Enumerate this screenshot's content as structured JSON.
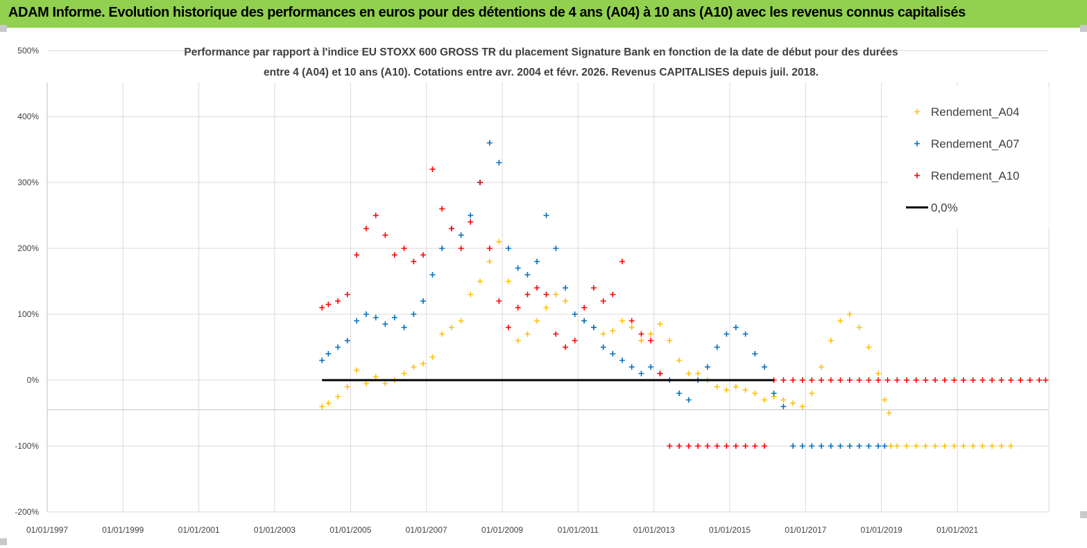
{
  "header": {
    "title": "ADAM Informe. Evolution historique des performances en euros pour des détentions de 4 ans (A04) à 10 ans (A10) avec les revenus connus capitalisés"
  },
  "colors": {
    "banner": "#92d050",
    "A04": "#ffc000",
    "A07": "#0070c0",
    "A10": "#ff0000",
    "zero": "#000000",
    "grid": "#d9d9d9"
  },
  "chart_data": {
    "type": "scatter",
    "title_lines": [
      "Performance par rapport à l'indice EU STOXX 600 GROSS TR  du placement Signature Bank en fonction de la date de début pour des durées",
      "entre 4 (A04) et 10 ans (A10).  Cotations entre avr. 2004 et févr. 2026. Revenus CAPITALISES depuis juil. 2018."
    ],
    "xlabel": "",
    "ylabel": "",
    "x_range": [
      "1997-01-01",
      "2023-06-01"
    ],
    "x_ticks": [
      "01/01/1997",
      "01/01/1999",
      "01/01/2001",
      "01/01/2003",
      "01/01/2005",
      "01/01/2007",
      "01/01/2009",
      "01/01/2011",
      "01/01/2013",
      "01/01/2015",
      "01/01/2017",
      "01/01/2019",
      "01/01/2021"
    ],
    "y_range": [
      -200,
      500
    ],
    "y_ticks": [
      "500%",
      "400%",
      "300%",
      "200%",
      "100%",
      "0%",
      "-100%",
      "-200%"
    ],
    "y_tick_values": [
      500,
      400,
      300,
      200,
      100,
      0,
      -100,
      -200
    ],
    "grid": true,
    "legend_position": "top-right",
    "series": [
      {
        "name": "Rendement_A04",
        "color": "#ffc000",
        "marker": "+",
        "x": [
          "2004-04-01",
          "2004-06-01",
          "2004-09-01",
          "2004-12-01",
          "2005-03-01",
          "2005-06-01",
          "2005-09-01",
          "2005-12-01",
          "2006-03-01",
          "2006-06-01",
          "2006-09-01",
          "2006-12-01",
          "2007-03-01",
          "2007-06-01",
          "2007-09-01",
          "2007-12-01",
          "2008-03-01",
          "2008-06-01",
          "2008-09-01",
          "2008-12-01",
          "2009-03-01",
          "2009-06-01",
          "2009-09-01",
          "2009-12-01",
          "2010-03-01",
          "2010-06-01",
          "2010-09-01",
          "2010-12-01",
          "2011-03-01",
          "2011-06-01",
          "2011-09-01",
          "2011-12-01",
          "2012-03-01",
          "2012-06-01",
          "2012-09-01",
          "2012-12-01",
          "2013-03-01",
          "2013-06-01",
          "2013-09-01",
          "2013-12-01",
          "2014-03-01",
          "2014-06-01",
          "2014-09-01",
          "2014-12-01",
          "2015-03-01",
          "2015-06-01",
          "2015-09-01",
          "2015-12-01",
          "2016-03-01",
          "2016-06-01",
          "2016-09-01",
          "2016-12-01",
          "2017-03-01",
          "2017-06-01",
          "2017-09-01",
          "2017-12-01",
          "2018-03-01",
          "2018-06-01",
          "2018-09-01",
          "2018-12-01",
          "2019-02-01",
          "2019-03-15",
          "2019-04-01",
          "2019-06-01",
          "2019-09-01",
          "2019-12-01",
          "2020-03-01",
          "2020-06-01",
          "2020-09-01",
          "2020-12-01",
          "2021-03-01",
          "2021-06-01",
          "2021-09-01",
          "2021-12-01",
          "2022-03-01",
          "2022-06-01"
        ],
        "y": [
          -40,
          -35,
          -25,
          -10,
          15,
          -5,
          5,
          -5,
          0,
          10,
          20,
          25,
          35,
          70,
          80,
          90,
          130,
          150,
          180,
          210,
          150,
          60,
          70,
          90,
          110,
          130,
          120,
          100,
          90,
          80,
          70,
          75,
          90,
          80,
          60,
          70,
          85,
          60,
          30,
          10,
          10,
          0,
          -10,
          -15,
          -10,
          -15,
          -20,
          -30,
          -25,
          -30,
          -35,
          -40,
          -20,
          20,
          60,
          90,
          100,
          80,
          50,
          10,
          -30,
          -50,
          -100,
          -100,
          -100,
          -100,
          -100,
          -100,
          -100,
          -100,
          -100,
          -100,
          -100,
          -100,
          -100,
          -100
        ]
      },
      {
        "name": "Rendement_A07",
        "color": "#0070c0",
        "marker": "+",
        "x": [
          "2004-04-01",
          "2004-06-01",
          "2004-09-01",
          "2004-12-01",
          "2005-03-01",
          "2005-06-01",
          "2005-09-01",
          "2005-12-01",
          "2006-03-01",
          "2006-06-01",
          "2006-09-01",
          "2006-12-01",
          "2007-03-01",
          "2007-06-01",
          "2007-09-01",
          "2007-12-01",
          "2008-03-01",
          "2008-06-01",
          "2008-09-01",
          "2008-12-01",
          "2009-03-01",
          "2009-06-01",
          "2009-09-01",
          "2009-12-01",
          "2010-03-01",
          "2010-06-01",
          "2010-09-01",
          "2010-12-01",
          "2011-03-01",
          "2011-06-01",
          "2011-09-01",
          "2011-12-01",
          "2012-03-01",
          "2012-06-01",
          "2012-09-01",
          "2012-12-01",
          "2013-03-01",
          "2013-06-01",
          "2013-09-01",
          "2013-12-01",
          "2014-03-01",
          "2014-06-01",
          "2014-09-01",
          "2014-12-01",
          "2015-03-01",
          "2015-06-01",
          "2015-09-01",
          "2015-12-01",
          "2016-03-01",
          "2016-06-01",
          "2016-09-01",
          "2016-12-01",
          "2017-03-01",
          "2017-06-01",
          "2017-09-01",
          "2017-12-01",
          "2018-03-01",
          "2018-06-01",
          "2018-09-01",
          "2018-12-01",
          "2019-02-01"
        ],
        "y": [
          30,
          40,
          50,
          60,
          90,
          100,
          95,
          85,
          95,
          80,
          100,
          120,
          160,
          200,
          230,
          220,
          250,
          300,
          360,
          330,
          200,
          170,
          160,
          180,
          250,
          200,
          140,
          100,
          90,
          80,
          50,
          40,
          30,
          20,
          10,
          20,
          10,
          0,
          -20,
          -30,
          0,
          20,
          50,
          70,
          80,
          70,
          40,
          20,
          -20,
          -40,
          -100,
          -100,
          -100,
          -100,
          -100,
          -100,
          -100,
          -100,
          -100,
          -100,
          -100
        ]
      },
      {
        "name": "Rendement_A10",
        "color": "#ff0000",
        "marker": "+",
        "x": [
          "2004-04-01",
          "2004-06-01",
          "2004-09-01",
          "2004-12-01",
          "2005-03-01",
          "2005-06-01",
          "2005-09-01",
          "2005-12-01",
          "2006-03-01",
          "2006-06-01",
          "2006-09-01",
          "2006-12-01",
          "2007-03-01",
          "2007-06-01",
          "2007-09-01",
          "2007-12-01",
          "2008-03-01",
          "2008-06-01",
          "2008-09-01",
          "2008-12-01",
          "2009-03-01",
          "2009-06-01",
          "2009-09-01",
          "2009-12-01",
          "2010-03-01",
          "2010-06-01",
          "2010-09-01",
          "2010-12-01",
          "2011-03-01",
          "2011-06-01",
          "2011-09-01",
          "2011-12-01",
          "2012-03-01",
          "2012-06-01",
          "2012-09-01",
          "2012-12-01",
          "2013-03-01",
          "2013-06-01",
          "2013-09-01",
          "2013-12-01",
          "2014-03-01",
          "2014-06-01",
          "2014-09-01",
          "2014-12-01",
          "2015-03-01",
          "2015-06-01",
          "2015-09-01",
          "2015-12-01",
          "2016-03-01",
          "2016-06-01",
          "2016-09-01",
          "2016-12-01",
          "2017-03-01",
          "2017-06-01",
          "2017-09-01",
          "2017-12-01",
          "2018-03-01",
          "2018-06-01",
          "2018-09-01",
          "2018-12-01",
          "2019-03-01",
          "2019-06-01",
          "2019-09-01",
          "2019-12-01",
          "2020-03-01",
          "2020-06-01",
          "2020-09-01",
          "2020-12-01",
          "2021-03-01",
          "2021-06-01",
          "2021-09-01",
          "2021-12-01",
          "2022-03-01",
          "2022-06-01",
          "2022-09-01",
          "2022-12-01",
          "2023-03-01",
          "2023-05-01"
        ],
        "y": [
          110,
          115,
          120,
          130,
          190,
          230,
          250,
          220,
          190,
          200,
          180,
          190,
          320,
          260,
          230,
          200,
          240,
          300,
          200,
          120,
          80,
          110,
          130,
          140,
          130,
          70,
          50,
          60,
          110,
          140,
          120,
          130,
          180,
          90,
          70,
          60,
          10,
          -100,
          -100,
          -100,
          -100,
          -100,
          -100,
          -100,
          -100,
          -100,
          -100,
          -100,
          0,
          0,
          0,
          0,
          0,
          0,
          0,
          0,
          0,
          0,
          0,
          0,
          0,
          0,
          0,
          0,
          0,
          0,
          0,
          0,
          0,
          0,
          0,
          0,
          0,
          0,
          0,
          0,
          0,
          0
        ]
      },
      {
        "name": "0,0%",
        "color": "#000000",
        "marker": "line",
        "x": [
          "2004-04-01",
          "2016-03-01"
        ],
        "y": [
          0,
          0
        ]
      }
    ]
  }
}
